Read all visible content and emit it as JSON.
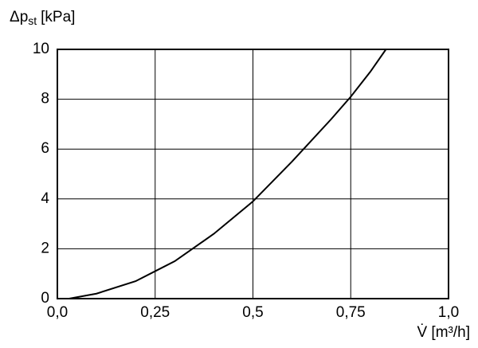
{
  "chart_data": {
    "type": "line",
    "ylabel": [
      "Δp",
      "st",
      "[kPa]"
    ],
    "xlabel": "V̇ [m³/h]",
    "x": [
      0.03,
      0.1,
      0.2,
      0.25,
      0.3,
      0.4,
      0.5,
      0.6,
      0.7,
      0.75,
      0.8,
      0.84
    ],
    "values": [
      0,
      0.2,
      0.7,
      1.1,
      1.5,
      2.6,
      3.9,
      5.5,
      7.2,
      8.1,
      9.1,
      10
    ],
    "color": "#000000",
    "xlim": [
      0,
      1
    ],
    "ylim": [
      0,
      10
    ],
    "xticks": [
      {
        "value": 0,
        "label": "0,0"
      },
      {
        "value": 0.25,
        "label": "0,25"
      },
      {
        "value": 0.5,
        "label": "0,5"
      },
      {
        "value": 0.75,
        "label": "0,75"
      },
      {
        "value": 1,
        "label": "1,0"
      }
    ],
    "yticks": [
      0,
      2,
      4,
      6,
      8,
      10
    ],
    "grid": true
  }
}
